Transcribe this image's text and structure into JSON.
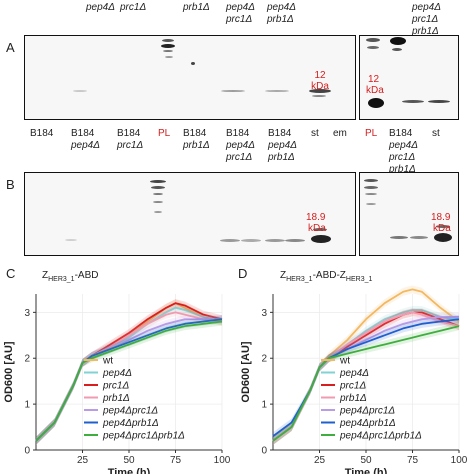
{
  "header": {
    "top_labels": [
      "pep4Δ",
      "prc1Δ",
      "prb1Δ",
      "pep4Δ",
      "prc1Δ",
      "pep4Δ",
      "prb1Δ",
      "pep4Δ",
      "prc1Δ",
      "prb1Δ"
    ]
  },
  "panel_a": {
    "letter": "A",
    "marker_label": [
      "12",
      "kDa"
    ],
    "marker_label_right": [
      "12",
      "kDa"
    ]
  },
  "lane_labels": {
    "l1": "B184",
    "l2a": "B184",
    "l2b": "pep4Δ",
    "l3a": "B184",
    "l3b": "prc1Δ",
    "l4": "PL",
    "l5a": "B184",
    "l5b": "prb1Δ",
    "l6a": "B184",
    "l6b": "pep4Δ",
    "l6c": "prc1Δ",
    "l7a": "B184",
    "l7b": "pep4Δ",
    "l7c": "prb1Δ",
    "l8": "st",
    "l9": "em",
    "l10": "PL",
    "l11a": "B184",
    "l11b": "pep4Δ",
    "l11c": "prc1Δ",
    "l11d": "prb1Δ",
    "l12": "st"
  },
  "panel_b": {
    "letter": "B",
    "marker_label": [
      "18.9",
      "kDa"
    ],
    "marker_label_right": [
      "18.9",
      "kDa"
    ]
  },
  "panel_c": {
    "letter": "C",
    "title_prefix": "Z",
    "title_sub": "HER3_1",
    "title_suffix": "-ABD"
  },
  "panel_d": {
    "letter": "D",
    "title_prefix": "Z",
    "title_sub": "HER3_1",
    "title_mid": "-ABD-Z",
    "title_sub2": "HER3_1"
  },
  "axes": {
    "ylabel": "OD600 [AU]",
    "xlabel": "Time (h)",
    "xticks": [
      "25",
      "50",
      "75",
      "100"
    ],
    "yticks": [
      "0",
      "1",
      "2",
      "3"
    ]
  },
  "legend": [
    "wt",
    "pep4Δ",
    "prc1Δ",
    "prb1Δ",
    "pep4Δprc1Δ",
    "pep4Δprb1Δ",
    "pep4Δprc1Δprb1Δ"
  ],
  "colors": {
    "wt": "#f4b860",
    "pep4": "#7fd3d3",
    "prc1": "#d81e1e",
    "prb1": "#f19ab0",
    "pep4prc1": "#b99be6",
    "pep4prb1": "#1f5fcf",
    "pep4prc1prb1": "#3fae3f",
    "marker_red": "#d42020"
  },
  "chart_data": [
    {
      "type": "line",
      "title": "ZHER3_1-ABD",
      "xlabel": "Time (h)",
      "ylabel": "OD600 [AU]",
      "xlim": [
        0,
        100
      ],
      "ylim": [
        0,
        3.4
      ],
      "x": [
        0,
        10,
        20,
        25,
        30,
        40,
        50,
        60,
        70,
        75,
        80,
        90,
        100
      ],
      "series": [
        {
          "name": "wt",
          "values": [
            0.2,
            0.6,
            1.4,
            1.9,
            2.05,
            2.25,
            2.5,
            2.8,
            3.1,
            3.2,
            3.1,
            2.9,
            2.8
          ]
        },
        {
          "name": "pep4Δ",
          "values": [
            0.2,
            0.6,
            1.4,
            1.9,
            2.05,
            2.25,
            2.45,
            2.75,
            3.0,
            3.1,
            3.05,
            2.9,
            2.8
          ]
        },
        {
          "name": "prc1Δ",
          "values": [
            0.2,
            0.6,
            1.4,
            1.9,
            2.05,
            2.3,
            2.55,
            2.85,
            3.1,
            3.2,
            3.15,
            2.95,
            2.85
          ]
        },
        {
          "name": "prb1Δ",
          "values": [
            0.2,
            0.6,
            1.4,
            1.9,
            2.05,
            2.25,
            2.5,
            2.75,
            2.95,
            3.0,
            2.95,
            2.85,
            2.8
          ]
        },
        {
          "name": "pep4Δprc1Δ",
          "values": [
            0.2,
            0.6,
            1.4,
            1.9,
            2.05,
            2.2,
            2.4,
            2.6,
            2.75,
            2.8,
            2.85,
            2.85,
            2.85
          ]
        },
        {
          "name": "pep4Δprb1Δ",
          "values": [
            0.2,
            0.6,
            1.4,
            1.9,
            2.05,
            2.2,
            2.35,
            2.5,
            2.65,
            2.7,
            2.75,
            2.8,
            2.85
          ]
        },
        {
          "name": "pep4Δprc1Δprb1Δ",
          "values": [
            0.2,
            0.6,
            1.4,
            1.9,
            2.0,
            2.15,
            2.3,
            2.45,
            2.6,
            2.65,
            2.7,
            2.75,
            2.8
          ]
        }
      ]
    },
    {
      "type": "line",
      "title": "ZHER3_1-ABD-ZHER3_1",
      "xlabel": "Time (h)",
      "ylabel": "OD600 [AU]",
      "xlim": [
        0,
        100
      ],
      "ylim": [
        0,
        3.4
      ],
      "x": [
        0,
        10,
        20,
        25,
        30,
        40,
        50,
        60,
        70,
        75,
        80,
        90,
        100
      ],
      "series": [
        {
          "name": "wt",
          "values": [
            0.2,
            0.5,
            1.3,
            1.8,
            2.05,
            2.4,
            2.85,
            3.2,
            3.45,
            3.5,
            3.45,
            3.1,
            2.8
          ]
        },
        {
          "name": "pep4Δ",
          "values": [
            0.2,
            0.5,
            1.3,
            1.8,
            2.0,
            2.3,
            2.6,
            2.85,
            3.0,
            3.05,
            3.05,
            2.9,
            2.85
          ]
        },
        {
          "name": "prc1Δ",
          "values": [
            0.2,
            0.5,
            1.3,
            1.8,
            2.0,
            2.25,
            2.5,
            2.75,
            2.95,
            3.0,
            3.0,
            2.85,
            2.7
          ]
        },
        {
          "name": "prb1Δ",
          "values": [
            0.2,
            0.5,
            1.3,
            1.8,
            2.0,
            2.3,
            2.55,
            2.8,
            2.95,
            3.0,
            2.95,
            2.8,
            2.7
          ]
        },
        {
          "name": "pep4Δprc1Δ",
          "values": [
            0.2,
            0.5,
            1.3,
            1.8,
            2.0,
            2.2,
            2.4,
            2.6,
            2.75,
            2.8,
            2.85,
            2.9,
            2.9
          ]
        },
        {
          "name": "pep4Δprb1Δ",
          "values": [
            0.3,
            0.6,
            1.3,
            1.8,
            2.0,
            2.2,
            2.35,
            2.5,
            2.65,
            2.7,
            2.75,
            2.8,
            2.85
          ]
        },
        {
          "name": "pep4Δprc1Δprb1Δ",
          "values": [
            0.2,
            0.5,
            1.3,
            1.8,
            2.0,
            2.1,
            2.2,
            2.3,
            2.4,
            2.45,
            2.5,
            2.6,
            2.7
          ]
        }
      ]
    }
  ]
}
